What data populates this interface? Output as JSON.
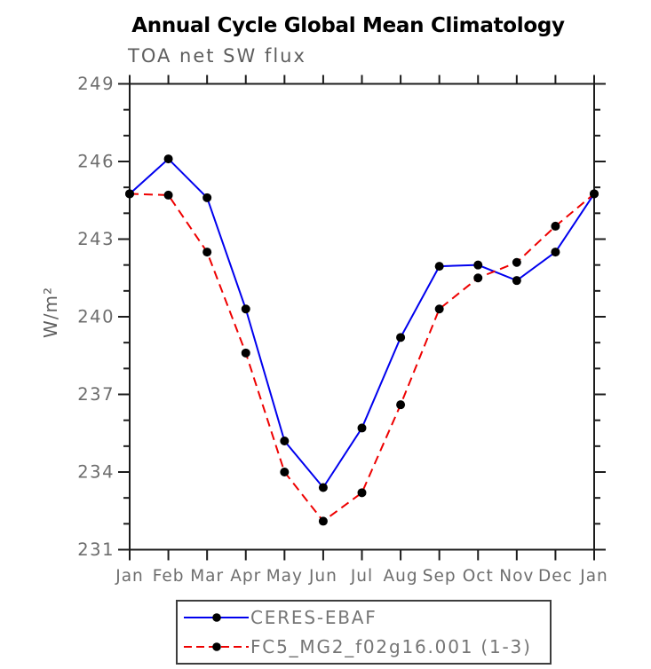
{
  "window": {
    "title": "Annual Cycle Global Mean Climatology"
  },
  "colors": {
    "background": "#ffffff",
    "axis": "#1c1c1c",
    "tick_label_gray": "#6d6d6d",
    "text_gray": "#5e5e5e",
    "legend_text_gray": "#757575",
    "series_blue": "#0000ee",
    "series_red": "#ee0000",
    "marker_black": "#000000"
  },
  "chart_data": {
    "type": "line",
    "title": "Annual Cycle Global Mean Climatology",
    "subtitle": "TOA net SW flux",
    "xlabel": "",
    "ylabel": "W/m²",
    "categories": [
      "Jan",
      "Feb",
      "Mar",
      "Apr",
      "May",
      "Jun",
      "Jul",
      "Aug",
      "Sep",
      "Oct",
      "Nov",
      "Dec",
      "Jan"
    ],
    "ylim": [
      231,
      249
    ],
    "ytick_major_step": 3,
    "ytick_minor_step": 1,
    "ytick_major_labels": [
      "249",
      "246",
      "243",
      "240",
      "237",
      "234",
      "231"
    ],
    "grid": false,
    "legend_position": "bottom-box",
    "series": [
      {
        "name": "CERES-EBAF",
        "color": "#0000ee",
        "line_style": "solid",
        "marker": "filled-circle",
        "marker_color": "#000000",
        "values": [
          244.75,
          246.1,
          244.6,
          240.3,
          235.2,
          233.4,
          235.7,
          239.2,
          241.95,
          242.0,
          241.4,
          242.5,
          244.75
        ]
      },
      {
        "name": "FC5_MG2_f02g16.001 (1-3)",
        "color": "#ee0000",
        "line_style": "dashed",
        "marker": "filled-circle",
        "marker_color": "#000000",
        "values": [
          244.75,
          244.7,
          242.5,
          238.6,
          234.0,
          232.1,
          233.2,
          236.6,
          240.3,
          241.5,
          242.1,
          243.5,
          244.75
        ]
      }
    ]
  }
}
